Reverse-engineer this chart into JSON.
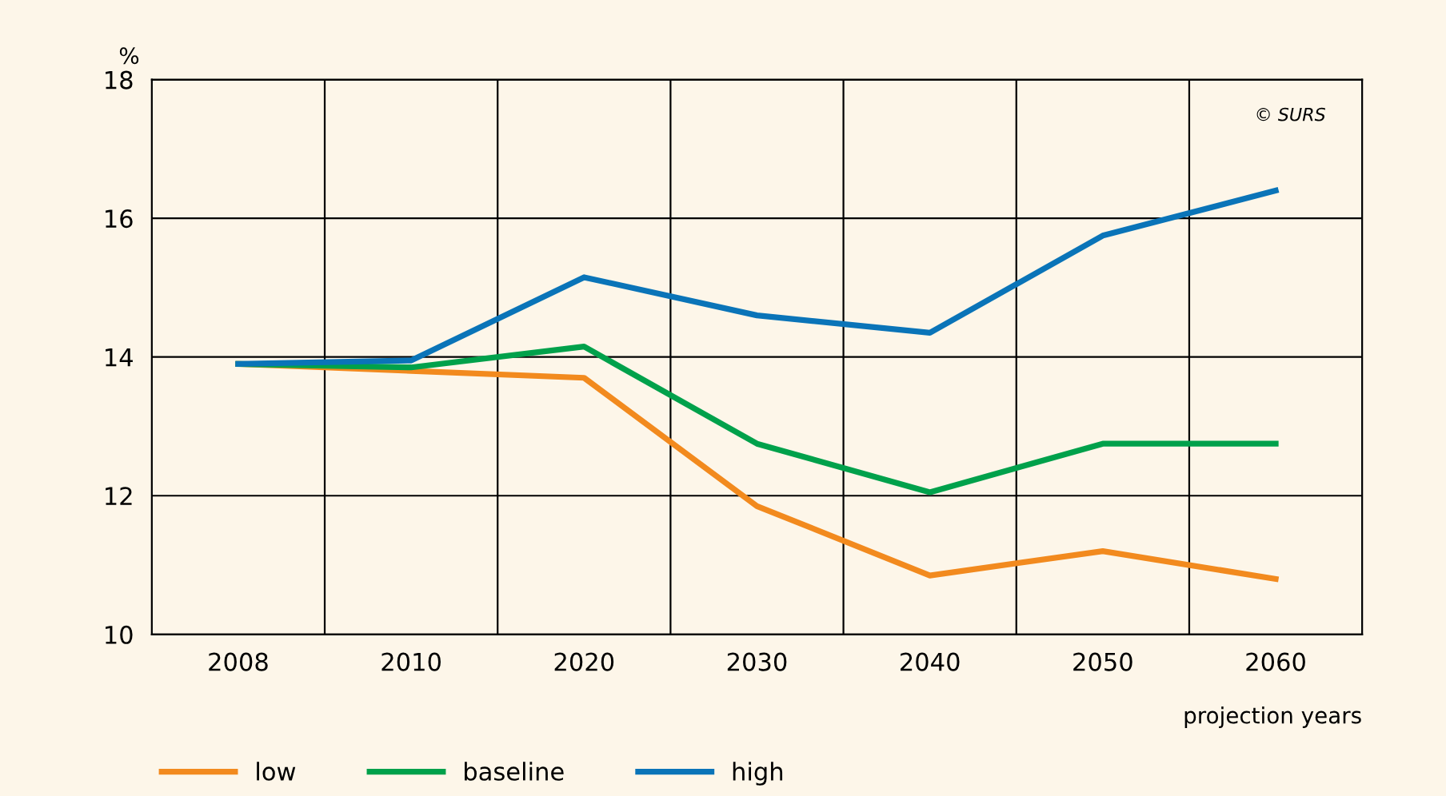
{
  "chart_data": {
    "type": "line",
    "ylabel": "%",
    "xlabel": "projection years",
    "categories": [
      "2008",
      "2010",
      "2020",
      "2030",
      "2040",
      "2050",
      "2060"
    ],
    "series": [
      {
        "name": "low",
        "color": "#f28a1e",
        "values": [
          13.9,
          13.8,
          13.7,
          11.85,
          10.85,
          11.2,
          10.8
        ]
      },
      {
        "name": "baseline",
        "color": "#00a14b",
        "values": [
          13.9,
          13.85,
          14.15,
          12.75,
          12.05,
          12.75,
          12.75
        ]
      },
      {
        "name": "high",
        "color": "#0a74b8",
        "values": [
          13.9,
          13.95,
          15.15,
          14.6,
          14.35,
          15.75,
          16.4
        ]
      }
    ],
    "ylim": [
      10,
      18
    ],
    "yticks": [
      10,
      12,
      14,
      16,
      18
    ],
    "grid": true,
    "legend": "bottom left",
    "marker": "none",
    "line_style": "solid",
    "annotations": [
      "© SURS"
    ]
  }
}
